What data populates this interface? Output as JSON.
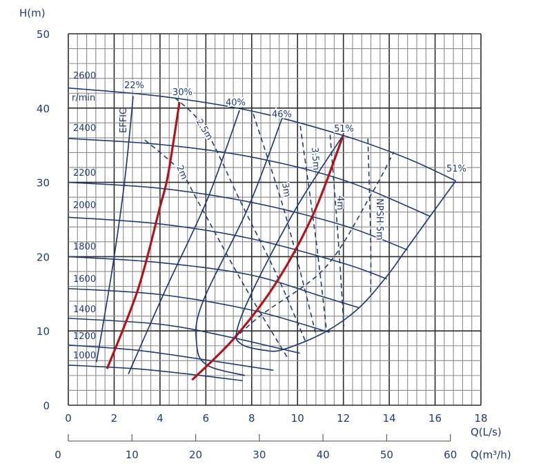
{
  "chart_data": {
    "type": "line",
    "ylabel": "H(m)",
    "xlabel": "Q(L/s)",
    "x2label": "Q(m³/h)",
    "xlim": [
      0,
      18
    ],
    "ylim": [
      0,
      50
    ],
    "x2lim": [
      0,
      60
    ],
    "xticks": [
      "0",
      "2",
      "4",
      "6",
      "8",
      "10",
      "12",
      "14",
      "16",
      "18"
    ],
    "yticks": [
      "0",
      "10",
      "20",
      "30",
      "40",
      "50"
    ],
    "x2ticks": [
      "0",
      "10",
      "20",
      "30",
      "40",
      "50",
      "60"
    ],
    "grid": true,
    "colors": {
      "curve": "#1f3a78",
      "highlight": "#b0151b",
      "grid_minor": "#8a8a8a",
      "grid_major": "#2a2a2a"
    },
    "speed_unit": "r/min",
    "speed_curves": [
      {
        "name": "2600",
        "points": [
          [
            0,
            42.7
          ],
          [
            4,
            41.6
          ],
          [
            8,
            39.6
          ],
          [
            12,
            36.3
          ],
          [
            14.8,
            33.2
          ],
          [
            16.9,
            30.2
          ]
        ]
      },
      {
        "name": "2400",
        "points": [
          [
            0,
            35.9
          ],
          [
            4,
            35.1
          ],
          [
            8,
            33.4
          ],
          [
            12,
            30.3
          ],
          [
            15.8,
            25.4
          ]
        ]
      },
      {
        "name": "2200",
        "points": [
          [
            0,
            30.0
          ],
          [
            4,
            29.2
          ],
          [
            8,
            27.3
          ],
          [
            12,
            24.2
          ],
          [
            14.8,
            20.9
          ]
        ]
      },
      {
        "name": "2000",
        "points": [
          [
            0,
            25.3
          ],
          [
            4,
            24.4
          ],
          [
            8,
            22.4
          ],
          [
            12,
            19.1
          ],
          [
            13.9,
            17.0
          ]
        ]
      },
      {
        "name": "1800",
        "points": [
          [
            0,
            20.0
          ],
          [
            4,
            19.2
          ],
          [
            8,
            17.5
          ],
          [
            11,
            14.7
          ],
          [
            12.7,
            13.1
          ]
        ]
      },
      {
        "name": "1600",
        "points": [
          [
            0,
            15.7
          ],
          [
            4,
            14.9
          ],
          [
            8,
            12.8
          ],
          [
            11.4,
            9.8
          ]
        ]
      },
      {
        "name": "1400",
        "points": [
          [
            0,
            11.7
          ],
          [
            4,
            10.9
          ],
          [
            7,
            9.2
          ],
          [
            10.1,
            7.0
          ]
        ]
      },
      {
        "name": "1200",
        "points": [
          [
            0,
            8.1
          ],
          [
            3,
            7.4
          ],
          [
            6,
            6.1
          ],
          [
            8.95,
            4.7
          ]
        ]
      },
      {
        "name": "1000",
        "points": [
          [
            0,
            5.4
          ],
          [
            3,
            4.9
          ],
          [
            5.5,
            4.1
          ],
          [
            7.6,
            3.3
          ]
        ]
      }
    ],
    "efficiency_label": "EFFIC",
    "efficiency_curves": [
      {
        "name": "22%",
        "color": "#1f3a78",
        "points": [
          [
            2.83,
            41.6
          ],
          [
            2.45,
            30
          ],
          [
            1.9,
            18
          ],
          [
            1.23,
            5.8
          ]
        ]
      },
      {
        "name": "30%",
        "color": "#b0151b",
        "points": [
          [
            4.85,
            40.8
          ],
          [
            4.35,
            31
          ],
          [
            4.0,
            26.7
          ],
          [
            3.04,
            15.6
          ],
          [
            1.69,
            4.9
          ]
        ]
      },
      {
        "name": "40%",
        "color": "#1f3a78",
        "points": [
          [
            7.47,
            39.7
          ],
          [
            6.05,
            27.6
          ],
          [
            4.25,
            15.6
          ],
          [
            2.62,
            4.2
          ]
        ]
      },
      {
        "name": "46%",
        "color": "#1f3a78",
        "points": [
          [
            9.37,
            39.0
          ],
          [
            7.86,
            26.7
          ],
          [
            5.84,
            13.7
          ],
          [
            5.6,
            8.2
          ],
          [
            6.05,
            5.4
          ],
          [
            7.7,
            4.0
          ]
        ]
      },
      {
        "name": "51%",
        "color": "#b0151b",
        "points": [
          [
            12.0,
            36.4
          ],
          [
            10.7,
            25.8
          ],
          [
            9.07,
            16.5
          ],
          [
            7.26,
            9.1
          ],
          [
            5.4,
            3.4
          ]
        ]
      },
      {
        "name": "51%",
        "color": "#1f3a78",
        "points": [
          [
            12.0,
            36.4
          ],
          [
            9.97,
            26.7
          ],
          [
            8.07,
            15.6
          ],
          [
            7.35,
            10.0
          ],
          [
            7.56,
            8.2
          ],
          [
            8.55,
            7.4
          ],
          [
            9.37,
            7.5
          ],
          [
            11.17,
            9.8
          ],
          [
            12.68,
            13.1
          ],
          [
            13.98,
            17.7
          ],
          [
            14.79,
            21.2
          ],
          [
            16.9,
            30.2
          ]
        ]
      }
    ],
    "npsh_curves": [
      {
        "name": "2m",
        "points": [
          [
            3.34,
            35.7
          ],
          [
            4.85,
            31.6
          ],
          [
            5.75,
            26.9
          ],
          [
            7.6,
            16.5
          ],
          [
            9.58,
            6.3
          ]
        ]
      },
      {
        "name": "2.5m",
        "points": [
          [
            4.65,
            41.4
          ],
          [
            5.96,
            37.2
          ],
          [
            7.56,
            27.1
          ],
          [
            9.1,
            17.5
          ],
          [
            10.4,
            8.2
          ]
        ]
      },
      {
        "name": "3m",
        "points": [
          [
            8.07,
            39.2
          ],
          [
            9.37,
            26.7
          ],
          [
            10.2,
            17
          ],
          [
            10.78,
            9.8
          ]
        ]
      },
      {
        "name": "3.5m",
        "points": [
          [
            10.12,
            37.6
          ],
          [
            10.81,
            22.1
          ],
          [
            11.27,
            9.9
          ]
        ]
      },
      {
        "name": "4m",
        "points": [
          [
            11.42,
            36.4
          ],
          [
            11.78,
            22.1
          ],
          [
            12.02,
            10.6
          ]
        ]
      },
      {
        "name": "NPSH 5m",
        "points": [
          [
            13.07,
            35.9
          ],
          [
            13.19,
            22.1
          ],
          [
            13.19,
            14.6
          ]
        ]
      },
      {
        "points": [
          [
            5.42,
            3.4
          ],
          [
            8.16,
            11.5
          ],
          [
            11.17,
            18.4
          ],
          [
            13.2,
            28.3
          ],
          [
            14.2,
            34.1
          ]
        ]
      }
    ]
  }
}
